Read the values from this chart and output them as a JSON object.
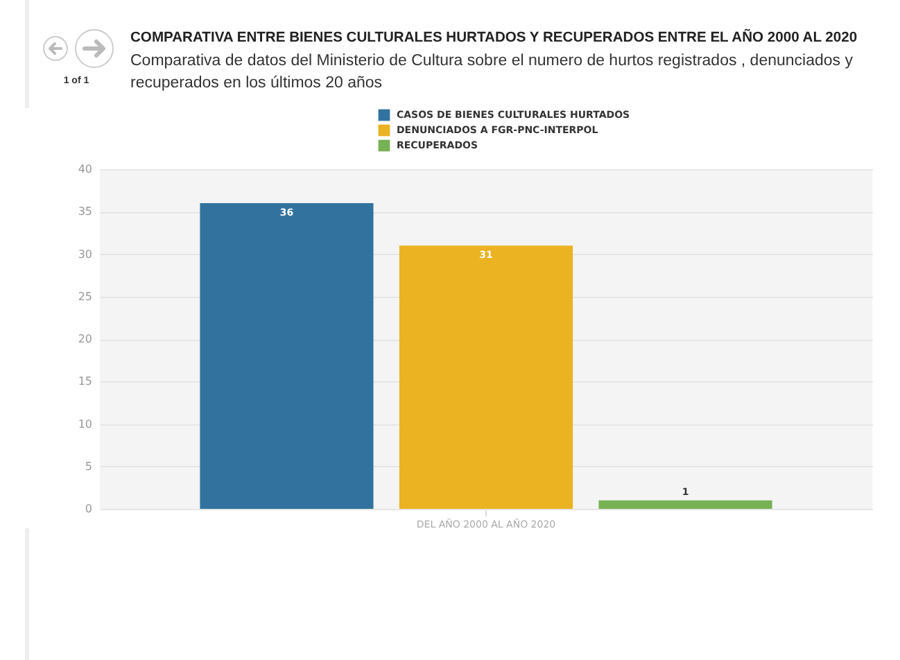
{
  "chart_data": {
    "type": "bar",
    "title": "COMPARATIVA ENTRE BIENES CULTURALES HURTADOS Y RECUPERADOS ENTRE EL AÑO 2000 AL 2020",
    "subtitle": "Comparativa de datos del Ministerio de Cultura sobre el numero de hurtos registrados , denunciados y recuperados en los últimos 20 años",
    "annotations": [
      "1 of 1"
    ],
    "categories": [
      "DEL AÑO 2000 AL AÑO 2020"
    ],
    "series": [
      {
        "name": "CASOS DE BIENES CULTURALES HURTADOS",
        "color": "#31739e",
        "values": [
          36
        ]
      },
      {
        "name": "DENUNCIADOS A FGR-PNC-INTERPOL",
        "color": "#ebb222",
        "values": [
          31
        ]
      },
      {
        "name": "RECUPERADOS",
        "color": "#77b255",
        "values": [
          1
        ]
      }
    ],
    "ylim": [
      0,
      40
    ],
    "yticks": [
      0,
      5,
      10,
      15,
      20,
      25,
      30,
      35,
      40
    ],
    "grid": "y",
    "legend": "top",
    "data_labels": true
  }
}
